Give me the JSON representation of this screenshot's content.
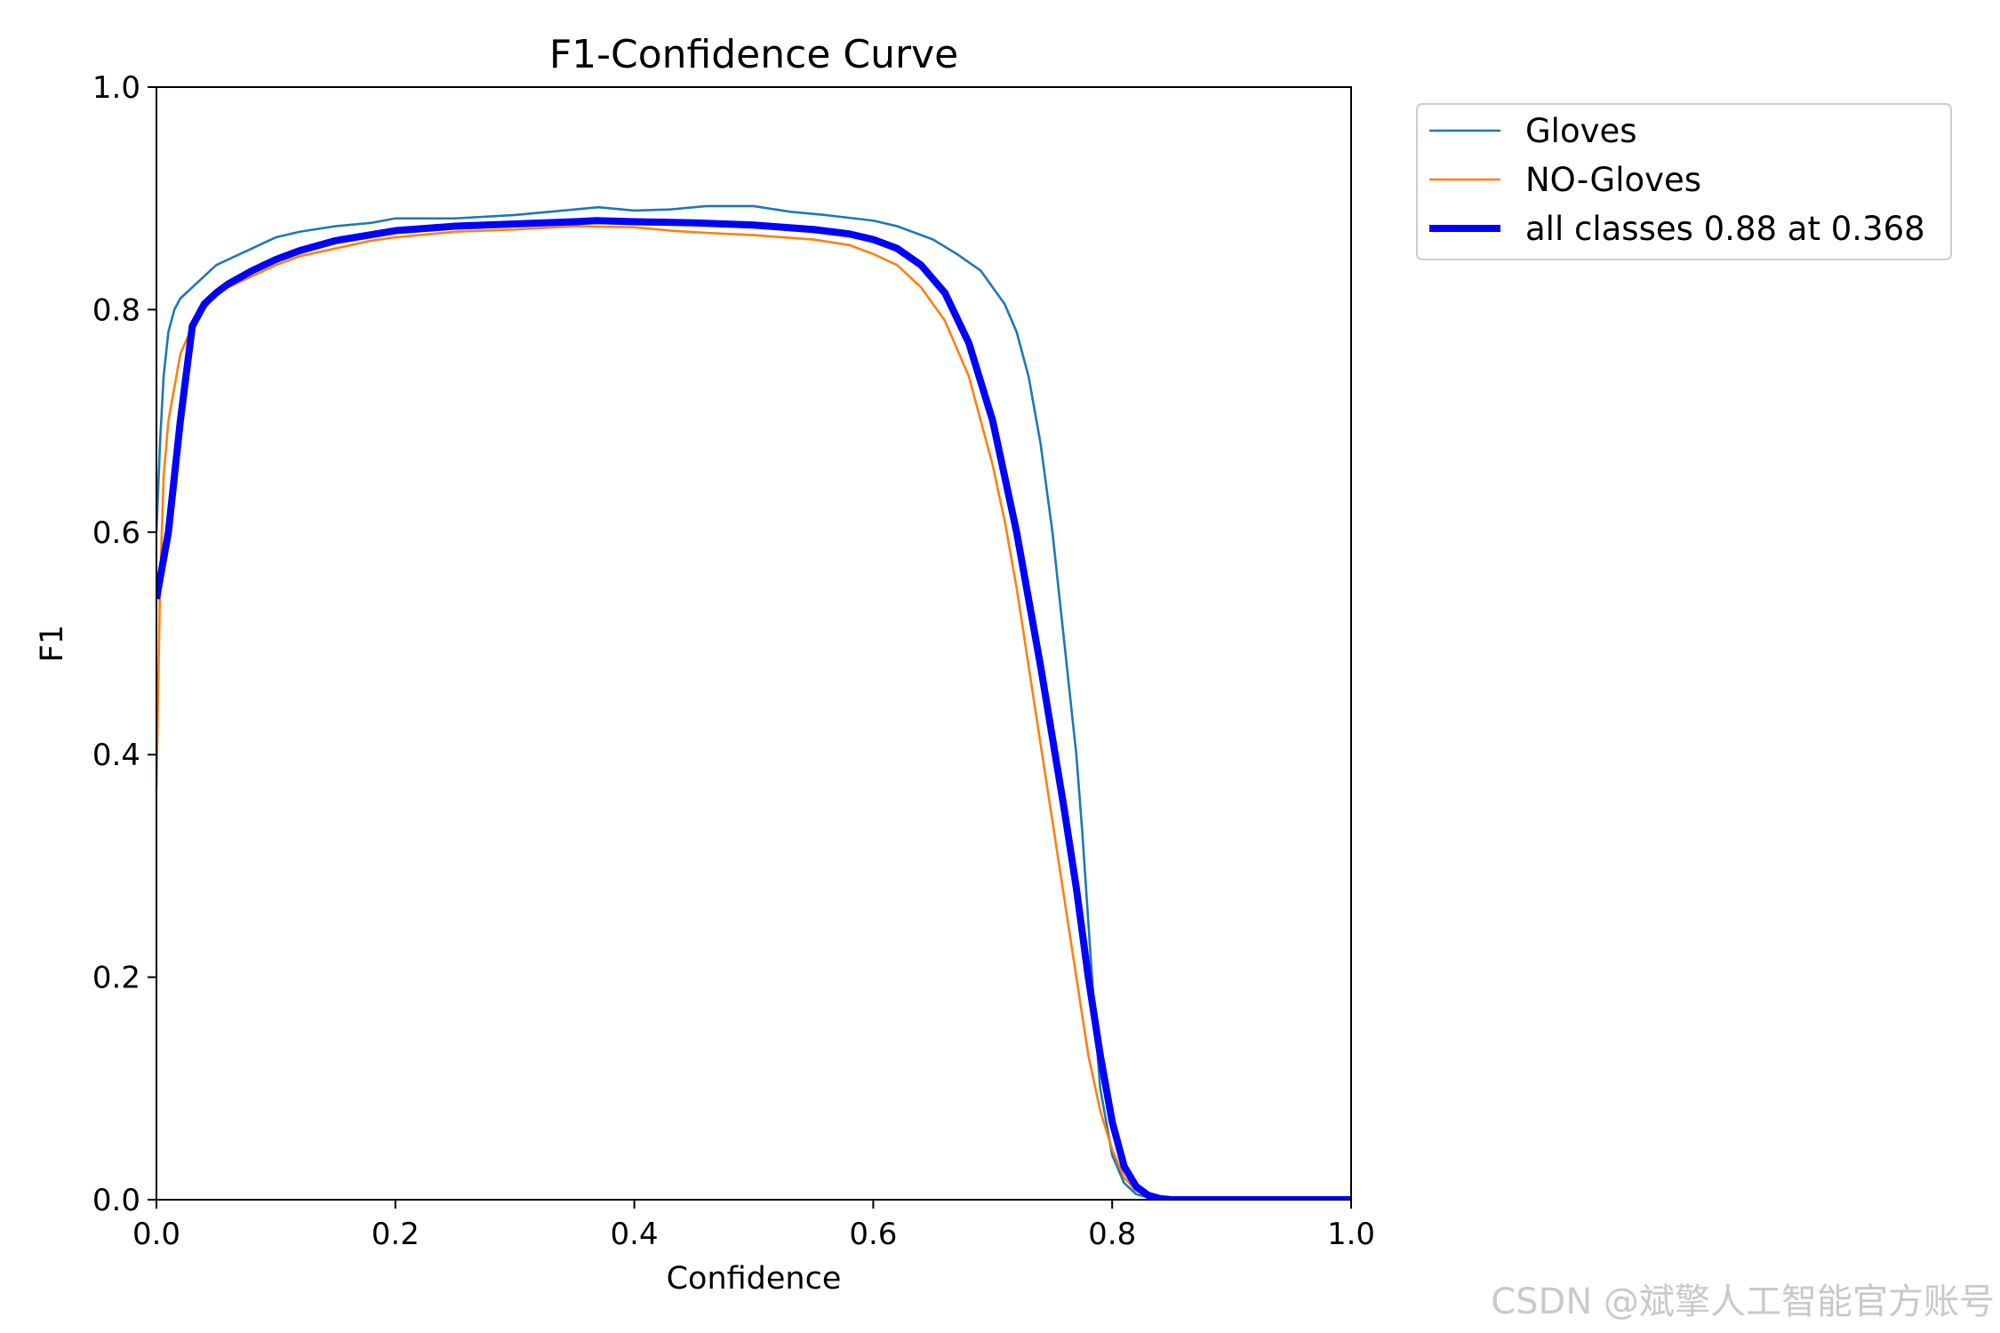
{
  "chart_data": {
    "type": "line",
    "title": "F1-Confidence Curve",
    "xlabel": "Confidence",
    "ylabel": "F1",
    "xlim": [
      0.0,
      1.0
    ],
    "ylim": [
      0.0,
      1.0
    ],
    "xticks": [
      "0.0",
      "0.2",
      "0.4",
      "0.6",
      "0.8",
      "1.0"
    ],
    "yticks": [
      "0.0",
      "0.2",
      "0.4",
      "0.6",
      "0.8",
      "1.0"
    ],
    "grid": false,
    "legend_position": "outside-top-right",
    "series": [
      {
        "name": "Gloves",
        "color": "#1f77b4",
        "x": [
          0.0,
          0.003,
          0.006,
          0.01,
          0.015,
          0.02,
          0.025,
          0.03,
          0.04,
          0.05,
          0.06,
          0.07,
          0.08,
          0.1,
          0.12,
          0.15,
          0.18,
          0.2,
          0.25,
          0.3,
          0.35,
          0.37,
          0.4,
          0.43,
          0.46,
          0.5,
          0.53,
          0.56,
          0.6,
          0.62,
          0.65,
          0.67,
          0.69,
          0.7,
          0.71,
          0.72,
          0.73,
          0.74,
          0.75,
          0.76,
          0.77,
          0.775,
          0.78,
          0.785,
          0.79,
          0.8,
          0.81,
          0.82,
          0.83,
          0.84,
          0.85,
          0.9,
          1.0
        ],
        "y": [
          0.6,
          0.68,
          0.74,
          0.78,
          0.8,
          0.81,
          0.815,
          0.82,
          0.83,
          0.84,
          0.845,
          0.85,
          0.855,
          0.865,
          0.87,
          0.875,
          0.878,
          0.882,
          0.882,
          0.885,
          0.89,
          0.892,
          0.889,
          0.89,
          0.893,
          0.893,
          0.888,
          0.885,
          0.88,
          0.875,
          0.863,
          0.85,
          0.835,
          0.82,
          0.805,
          0.78,
          0.74,
          0.68,
          0.6,
          0.5,
          0.4,
          0.33,
          0.25,
          0.17,
          0.1,
          0.04,
          0.015,
          0.005,
          0.002,
          0.001,
          0.0,
          0.0,
          0.0
        ]
      },
      {
        "name": "NO-Gloves",
        "color": "#ff7f0e",
        "x": [
          0.0,
          0.003,
          0.006,
          0.01,
          0.015,
          0.02,
          0.03,
          0.04,
          0.05,
          0.06,
          0.08,
          0.1,
          0.12,
          0.15,
          0.18,
          0.2,
          0.25,
          0.3,
          0.35,
          0.4,
          0.43,
          0.46,
          0.5,
          0.55,
          0.58,
          0.6,
          0.62,
          0.64,
          0.66,
          0.67,
          0.68,
          0.69,
          0.7,
          0.71,
          0.72,
          0.73,
          0.74,
          0.75,
          0.76,
          0.77,
          0.78,
          0.79,
          0.8,
          0.81,
          0.82,
          0.83,
          0.84,
          0.85,
          0.9,
          1.0
        ],
        "y": [
          0.37,
          0.55,
          0.65,
          0.7,
          0.73,
          0.76,
          0.785,
          0.8,
          0.815,
          0.82,
          0.83,
          0.84,
          0.848,
          0.855,
          0.862,
          0.865,
          0.87,
          0.872,
          0.875,
          0.874,
          0.871,
          0.869,
          0.867,
          0.863,
          0.858,
          0.85,
          0.84,
          0.82,
          0.79,
          0.765,
          0.74,
          0.7,
          0.66,
          0.61,
          0.55,
          0.48,
          0.41,
          0.34,
          0.27,
          0.2,
          0.13,
          0.08,
          0.045,
          0.02,
          0.008,
          0.003,
          0.001,
          0.0,
          0.0,
          0.0
        ]
      },
      {
        "name": "all classes 0.88 at 0.368",
        "color": "#0000ff",
        "x": [
          0.0,
          0.01,
          0.02,
          0.03,
          0.04,
          0.05,
          0.06,
          0.08,
          0.1,
          0.12,
          0.15,
          0.2,
          0.25,
          0.3,
          0.35,
          0.368,
          0.4,
          0.45,
          0.5,
          0.55,
          0.58,
          0.6,
          0.62,
          0.64,
          0.66,
          0.68,
          0.7,
          0.72,
          0.74,
          0.76,
          0.77,
          0.78,
          0.79,
          0.8,
          0.81,
          0.82,
          0.83,
          0.84,
          0.85,
          0.9,
          1.0
        ],
        "y": [
          0.54,
          0.6,
          0.7,
          0.785,
          0.805,
          0.815,
          0.823,
          0.835,
          0.845,
          0.853,
          0.862,
          0.871,
          0.875,
          0.877,
          0.879,
          0.88,
          0.879,
          0.878,
          0.876,
          0.872,
          0.868,
          0.863,
          0.855,
          0.84,
          0.815,
          0.77,
          0.7,
          0.6,
          0.48,
          0.35,
          0.28,
          0.2,
          0.13,
          0.07,
          0.03,
          0.012,
          0.004,
          0.001,
          0.0,
          0.0,
          0.0
        ]
      }
    ],
    "watermark": "CSDN @斌擎人工智能官方账号"
  }
}
